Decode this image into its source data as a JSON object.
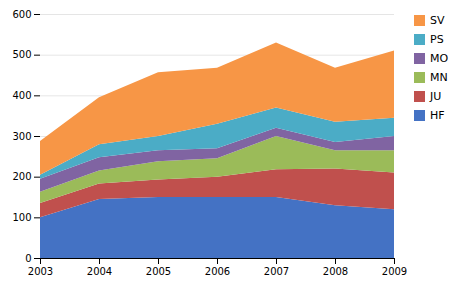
{
  "chart_data": {
    "type": "area",
    "stacked": true,
    "x": [
      2003,
      2004,
      2005,
      2006,
      2007,
      2008,
      2009
    ],
    "series": [
      {
        "name": "HF",
        "color": "#4472C4",
        "values": [
          100,
          145,
          150,
          150,
          150,
          130,
          120
        ]
      },
      {
        "name": "JU",
        "color": "#C0504D",
        "values": [
          35,
          38,
          43,
          50,
          68,
          90,
          90
        ]
      },
      {
        "name": "MN",
        "color": "#9BBB59",
        "values": [
          28,
          32,
          45,
          45,
          82,
          45,
          55
        ]
      },
      {
        "name": "MO",
        "color": "#8064A2",
        "values": [
          32,
          33,
          27,
          25,
          20,
          20,
          35
        ]
      },
      {
        "name": "PS",
        "color": "#4BACC6",
        "values": [
          10,
          32,
          35,
          60,
          50,
          50,
          45
        ]
      },
      {
        "name": "SV",
        "color": "#F79646",
        "values": [
          83,
          115,
          157,
          138,
          160,
          133,
          165
        ]
      }
    ],
    "xlim": [
      2003,
      2009
    ],
    "xticks": [
      2003,
      2004,
      2005,
      2006,
      2007,
      2008,
      2009
    ],
    "ylim": [
      0,
      600
    ],
    "yticks": [
      0,
      100,
      200,
      300,
      400,
      500,
      600
    ],
    "grid": true,
    "legend": "right"
  }
}
